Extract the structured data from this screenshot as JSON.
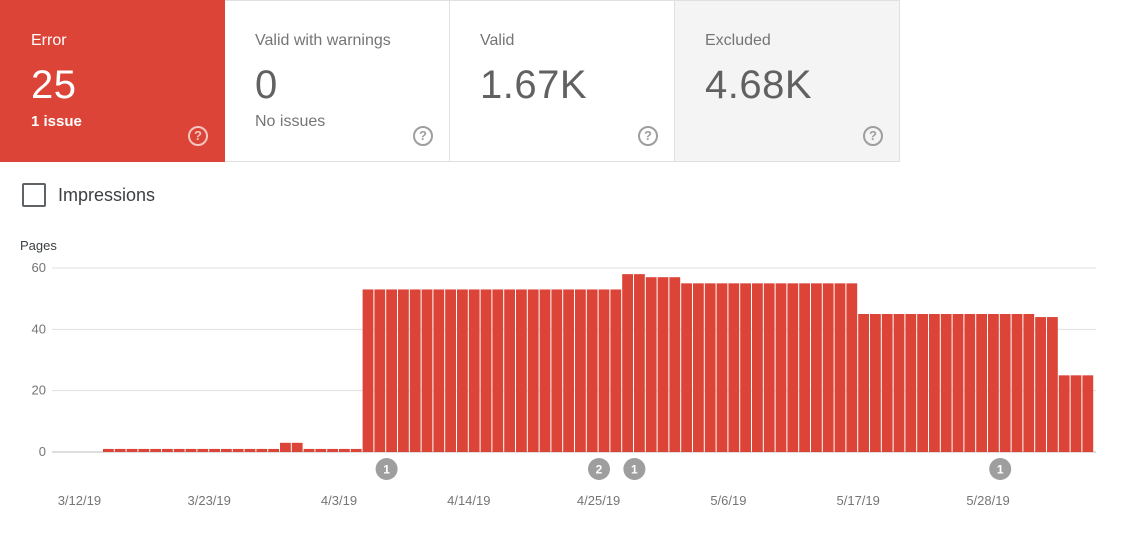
{
  "summary_cards": [
    {
      "label": "Error",
      "value": "25",
      "sub": "1 issue",
      "state": "active"
    },
    {
      "label": "Valid with warnings",
      "value": "0",
      "sub": "No issues",
      "state": "normal"
    },
    {
      "label": "Valid",
      "value": "1.67K",
      "sub": "",
      "state": "normal"
    },
    {
      "label": "Excluded",
      "value": "4.68K",
      "sub": "",
      "state": "greyed"
    }
  ],
  "help_glyph": "?",
  "impressions": {
    "label": "Impressions",
    "checked": false
  },
  "colors": {
    "error": "#db4437",
    "grid": "#e0e0e0",
    "axis_text": "#757575",
    "marker": "#9e9e9e"
  },
  "chart_data": {
    "type": "bar",
    "ylabel": "Pages",
    "ylim": [
      0,
      60
    ],
    "yticks": [
      0,
      20,
      40,
      60
    ],
    "x_start": "3/12/19",
    "x_tick_labels": [
      "3/12/19",
      "3/23/19",
      "4/3/19",
      "4/14/19",
      "4/25/19",
      "5/6/19",
      "5/17/19",
      "5/28/19"
    ],
    "x_tick_indices": [
      0,
      11,
      22,
      33,
      44,
      55,
      66,
      77
    ],
    "values": [
      1,
      1,
      1,
      1,
      1,
      1,
      1,
      1,
      1,
      1,
      1,
      1,
      1,
      1,
      1,
      3,
      3,
      1,
      1,
      1,
      1,
      1,
      53,
      53,
      53,
      53,
      53,
      53,
      53,
      53,
      53,
      53,
      53,
      53,
      53,
      53,
      53,
      53,
      53,
      53,
      53,
      53,
      53,
      53,
      58,
      58,
      57,
      57,
      57,
      55,
      55,
      55,
      55,
      55,
      55,
      55,
      55,
      55,
      55,
      55,
      55,
      55,
      55,
      55,
      45,
      45,
      45,
      45,
      45,
      45,
      45,
      45,
      45,
      45,
      45,
      45,
      45,
      45,
      45,
      44,
      44,
      25,
      25,
      25
    ],
    "annotations": [
      {
        "index": 24,
        "label": "1"
      },
      {
        "index": 42,
        "label": "2"
      },
      {
        "index": 45,
        "label": "1"
      },
      {
        "index": 76,
        "label": "1"
      }
    ]
  }
}
